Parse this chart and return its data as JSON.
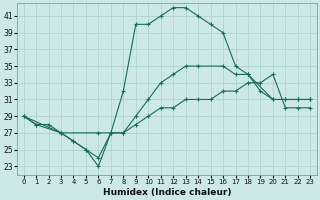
{
  "xlabel": "Humidex (Indice chaleur)",
  "bg_color": "#cce8e8",
  "grid_color": "#aacece",
  "line_color": "#1a6b5a",
  "xlim": [
    -0.5,
    23.5
  ],
  "ylim": [
    22,
    42.5
  ],
  "xticks": [
    0,
    1,
    2,
    3,
    4,
    5,
    6,
    7,
    8,
    9,
    10,
    11,
    12,
    13,
    14,
    15,
    16,
    17,
    18,
    19,
    20,
    21,
    22,
    23
  ],
  "yticks": [
    23,
    25,
    27,
    29,
    31,
    33,
    35,
    37,
    39,
    41
  ],
  "series1_x": [
    0,
    1,
    2,
    3,
    4,
    5,
    6,
    7,
    8,
    9,
    10,
    11,
    12,
    13,
    14,
    15,
    16,
    17,
    18,
    19,
    20,
    21,
    22,
    23
  ],
  "series1_y": [
    29,
    28,
    28,
    27,
    26,
    25,
    23,
    27,
    32,
    40,
    40,
    41,
    42,
    42,
    41,
    40,
    39,
    35,
    34,
    32,
    31,
    31,
    31,
    31
  ],
  "series2_x": [
    0,
    3,
    4,
    5,
    6,
    7,
    8,
    9,
    10,
    11,
    12,
    13,
    14,
    16,
    17,
    18,
    20,
    21,
    22,
    23
  ],
  "series2_y": [
    29,
    27,
    26,
    25,
    24,
    27,
    27,
    29,
    31,
    33,
    34,
    35,
    35,
    35,
    34,
    34,
    31,
    31,
    31,
    31
  ],
  "series3_x": [
    0,
    1,
    3,
    6,
    8,
    9,
    10,
    11,
    12,
    13,
    14,
    15,
    16,
    17,
    18,
    19,
    20,
    21,
    22,
    23
  ],
  "series3_y": [
    29,
    28,
    27,
    27,
    27,
    28,
    29,
    30,
    30,
    31,
    31,
    31,
    32,
    32,
    33,
    33,
    34,
    30,
    30,
    30
  ]
}
